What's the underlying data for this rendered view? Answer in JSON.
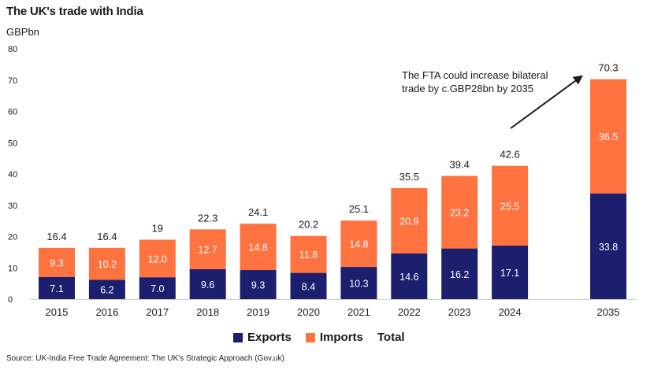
{
  "header": {
    "title": "The UK's trade with India",
    "unit": "GBPbn"
  },
  "footer": {
    "source": "Source: UK-India Free Trade Agreement: The UK's Strategic Approach (Gov.uk)"
  },
  "colors": {
    "exports": "#1b1f6e",
    "imports": "#ff7340",
    "text_on_bar": "#ffffff"
  },
  "chart_data": {
    "type": "bar",
    "stacked": true,
    "categories": [
      "2015",
      "2016",
      "2017",
      "2018",
      "2019",
      "2020",
      "2021",
      "2022",
      "2023",
      "2024",
      "2035"
    ],
    "series": [
      {
        "name": "Exports",
        "values": [
          7.1,
          6.2,
          7.0,
          9.6,
          9.3,
          8.4,
          10.3,
          14.6,
          16.2,
          17.1,
          33.8
        ]
      },
      {
        "name": "Imports",
        "values": [
          9.3,
          10.2,
          12.0,
          12.7,
          14.8,
          11.8,
          14.8,
          20.9,
          23.2,
          25.5,
          36.5
        ]
      }
    ],
    "export_labels": [
      "7.1",
      "6.2",
      "7.0",
      "9.6",
      "9.3",
      "8.4",
      "10.3",
      "14.6",
      "16.2",
      "17.1",
      "33.8"
    ],
    "import_labels": [
      "9.3",
      "10.2",
      "12.0",
      "12.7",
      "14.8",
      "11.8",
      "14.8",
      "20.9",
      "23.2",
      "25.5",
      "36.5"
    ],
    "totals": [
      "16.4",
      "16.4",
      "19",
      "22.3",
      "24.1",
      "20.2",
      "25.1",
      "35.5",
      "39.4",
      "42.6",
      "70.3"
    ],
    "total_label": "Total",
    "ylim": [
      0,
      80
    ],
    "yticks": [
      "0",
      "10",
      "20",
      "30",
      "40",
      "50",
      "60",
      "70",
      "80"
    ],
    "gap_before_last": true,
    "annotation": {
      "lines": [
        "The FTA could increase bilateral",
        "trade by c.GBP28bn by 2035"
      ],
      "arrow": "from annotation up to the 2035 total"
    },
    "grid": false,
    "legend_position": "bottom-center"
  }
}
